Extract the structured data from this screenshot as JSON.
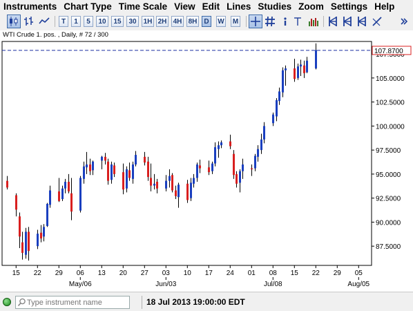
{
  "menu": [
    "Instruments",
    "Chart Type",
    "Time Scale",
    "View",
    "Edit",
    "Lines",
    "Studies",
    "Zoom",
    "Settings",
    "Help"
  ],
  "toolbar": {
    "timeframes": [
      "T",
      "1",
      "5",
      "10",
      "15",
      "30",
      "1H",
      "2H",
      "4H",
      "8H",
      "D",
      "W",
      "M"
    ],
    "active_timeframe": "D"
  },
  "chart": {
    "header": "WTI Crude 1. pos. , Daily, # 72 / 300",
    "current_price": "107.8700",
    "y_tick_labels": [
      "107.5000",
      "105.0000",
      "102.5000",
      "100.0000",
      "97.5000",
      "95.0000",
      "92.5000",
      "90.0000",
      "87.5000"
    ],
    "x_day_labels": [
      "15",
      "22",
      "29",
      "06",
      "13",
      "20",
      "27",
      "03",
      "10",
      "17",
      "24",
      "01",
      "08",
      "15",
      "22",
      "29",
      "05"
    ],
    "x_month_labels": [
      "May/06",
      "Jun/03",
      "Jul/08",
      "Aug/05"
    ]
  },
  "chart_data": {
    "type": "candlestick",
    "title": "WTI Crude 1. pos. , Daily, # 72 / 300",
    "current_price": 107.87,
    "ylim": [
      85.5,
      108.8
    ],
    "colors": {
      "up": "#1a3fbf",
      "down": "#d91f1f",
      "price_line": "#1a2fa0"
    },
    "candles": [
      {
        "d": "2013-04-12",
        "o": 94.3,
        "h": 94.8,
        "l": 93.4,
        "c": 93.6
      },
      {
        "d": "2013-04-15",
        "o": 92.8,
        "h": 93.0,
        "l": 90.6,
        "c": 91.3
      },
      {
        "d": "2013-04-16",
        "o": 90.6,
        "h": 91.0,
        "l": 87.3,
        "c": 88.5
      },
      {
        "d": "2013-04-17",
        "o": 87.9,
        "h": 89.0,
        "l": 86.1,
        "c": 86.8
      },
      {
        "d": "2013-04-18",
        "o": 86.6,
        "h": 89.4,
        "l": 86.2,
        "c": 89.0
      },
      {
        "d": "2013-04-19",
        "o": 89.0,
        "h": 89.5,
        "l": 86.0,
        "c": 87.0
      },
      {
        "d": "2013-04-22",
        "o": 87.5,
        "h": 89.2,
        "l": 87.2,
        "c": 88.8
      },
      {
        "d": "2013-04-23",
        "o": 88.9,
        "h": 89.7,
        "l": 87.9,
        "c": 88.3
      },
      {
        "d": "2013-04-24",
        "o": 88.5,
        "h": 89.8,
        "l": 88.0,
        "c": 89.5
      },
      {
        "d": "2013-04-25",
        "o": 89.6,
        "h": 92.0,
        "l": 89.5,
        "c": 91.9
      },
      {
        "d": "2013-04-26",
        "o": 91.8,
        "h": 93.8,
        "l": 91.5,
        "c": 93.3
      },
      {
        "d": "2013-04-29",
        "o": 93.2,
        "h": 94.6,
        "l": 92.1,
        "c": 92.2
      },
      {
        "d": "2013-04-30",
        "o": 92.4,
        "h": 93.8,
        "l": 92.2,
        "c": 93.5
      },
      {
        "d": "2013-05-01",
        "o": 93.5,
        "h": 94.5,
        "l": 93.0,
        "c": 94.2
      },
      {
        "d": "2013-05-02",
        "o": 94.2,
        "h": 95.0,
        "l": 93.0,
        "c": 93.2
      },
      {
        "d": "2013-05-03",
        "o": 93.0,
        "h": 94.6,
        "l": 90.2,
        "c": 91.1
      },
      {
        "d": "2013-05-06",
        "o": 91.2,
        "h": 94.8,
        "l": 91.0,
        "c": 94.6
      },
      {
        "d": "2013-05-07",
        "o": 94.5,
        "h": 96.3,
        "l": 94.0,
        "c": 95.8
      },
      {
        "d": "2013-05-08",
        "o": 95.7,
        "h": 97.3,
        "l": 95.0,
        "c": 96.0
      },
      {
        "d": "2013-05-09",
        "o": 96.0,
        "h": 96.6,
        "l": 94.9,
        "c": 95.3
      },
      {
        "d": "2013-05-10",
        "o": 95.4,
        "h": 96.4,
        "l": 94.9,
        "c": 96.3
      },
      {
        "d": "2013-05-13",
        "o": 96.4,
        "h": 96.9,
        "l": 95.5,
        "c": 96.8
      },
      {
        "d": "2013-05-14",
        "o": 96.8,
        "h": 97.2,
        "l": 96.0,
        "c": 96.4
      },
      {
        "d": "2013-05-15",
        "o": 96.3,
        "h": 96.6,
        "l": 93.9,
        "c": 94.3
      },
      {
        "d": "2013-05-16",
        "o": 94.4,
        "h": 96.3,
        "l": 94.0,
        "c": 96.0
      },
      {
        "d": "2013-05-17",
        "o": 95.9,
        "h": 96.2,
        "l": 94.7,
        "c": 95.0
      },
      {
        "d": "2013-05-20",
        "o": 95.2,
        "h": 96.1,
        "l": 92.9,
        "c": 93.4
      },
      {
        "d": "2013-05-21",
        "o": 93.5,
        "h": 95.8,
        "l": 93.1,
        "c": 95.5
      },
      {
        "d": "2013-05-22",
        "o": 95.4,
        "h": 96.2,
        "l": 94.3,
        "c": 94.6
      },
      {
        "d": "2013-05-23",
        "o": 94.5,
        "h": 96.3,
        "l": 94.0,
        "c": 96.0
      },
      {
        "d": "2013-05-24",
        "o": 96.0,
        "h": 97.4,
        "l": 95.8,
        "c": 97.0
      },
      {
        "d": "2013-05-27",
        "o": 96.8,
        "h": 97.3,
        "l": 95.9,
        "c": 96.2
      },
      {
        "d": "2013-05-28",
        "o": 96.3,
        "h": 96.8,
        "l": 94.3,
        "c": 94.7
      },
      {
        "d": "2013-05-29",
        "o": 94.6,
        "h": 96.1,
        "l": 93.2,
        "c": 93.8
      },
      {
        "d": "2013-05-30",
        "o": 93.8,
        "h": 95.0,
        "l": 93.4,
        "c": 94.0
      },
      {
        "d": "2013-05-31",
        "o": 94.2,
        "h": 94.5,
        "l": 93.0,
        "c": 93.5
      },
      {
        "d": "2013-06-03",
        "o": 93.5,
        "h": 94.9,
        "l": 93.2,
        "c": 94.3
      },
      {
        "d": "2013-06-04",
        "o": 94.3,
        "h": 95.5,
        "l": 93.6,
        "c": 94.8
      },
      {
        "d": "2013-06-05",
        "o": 94.9,
        "h": 95.1,
        "l": 93.1,
        "c": 93.3
      },
      {
        "d": "2013-06-06",
        "o": 93.3,
        "h": 93.8,
        "l": 92.4,
        "c": 92.7
      },
      {
        "d": "2013-06-07",
        "o": 92.6,
        "h": 94.1,
        "l": 91.5,
        "c": 93.9
      },
      {
        "d": "2013-06-10",
        "o": 94.0,
        "h": 94.4,
        "l": 92.0,
        "c": 92.3
      },
      {
        "d": "2013-06-11",
        "o": 92.5,
        "h": 94.6,
        "l": 92.2,
        "c": 94.1
      },
      {
        "d": "2013-06-12",
        "o": 94.0,
        "h": 95.0,
        "l": 93.6,
        "c": 94.6
      },
      {
        "d": "2013-06-13",
        "o": 94.6,
        "h": 96.2,
        "l": 94.2,
        "c": 96.0
      },
      {
        "d": "2013-06-14",
        "o": 95.9,
        "h": 96.5,
        "l": 95.1,
        "c": 95.6
      },
      {
        "d": "2013-06-17",
        "o": 95.7,
        "h": 96.4,
        "l": 94.9,
        "c": 95.2
      },
      {
        "d": "2013-06-18",
        "o": 95.3,
        "h": 96.3,
        "l": 95.0,
        "c": 96.1
      },
      {
        "d": "2013-06-19",
        "o": 96.1,
        "h": 98.3,
        "l": 95.8,
        "c": 97.8
      },
      {
        "d": "2013-06-20",
        "o": 97.6,
        "h": 98.4,
        "l": 96.7,
        "c": 98.0
      },
      {
        "d": "2013-06-21",
        "o": 98.0,
        "h": 98.5,
        "l": 97.7,
        "c": 98.3
      },
      {
        "d": "2013-06-24",
        "o": 98.4,
        "h": 99.1,
        "l": 97.6,
        "c": 97.9
      },
      {
        "d": "2013-06-25",
        "o": 97.1,
        "h": 97.5,
        "l": 94.5,
        "c": 94.9
      },
      {
        "d": "2013-06-26",
        "o": 95.0,
        "h": 95.3,
        "l": 93.6,
        "c": 94.0
      },
      {
        "d": "2013-06-27",
        "o": 94.1,
        "h": 95.5,
        "l": 93.1,
        "c": 95.3
      },
      {
        "d": "2013-06-28",
        "o": 95.3,
        "h": 96.6,
        "l": 94.5,
        "c": 96.0
      },
      {
        "d": "2013-07-01",
        "o": 95.6,
        "h": 96.0,
        "l": 94.8,
        "c": 95.5
      },
      {
        "d": "2013-07-02",
        "o": 95.6,
        "h": 97.1,
        "l": 95.3,
        "c": 96.9
      },
      {
        "d": "2013-07-03",
        "o": 96.8,
        "h": 98.0,
        "l": 96.3,
        "c": 97.6
      },
      {
        "d": "2013-07-04",
        "o": 97.5,
        "h": 99.2,
        "l": 97.1,
        "c": 98.6
      },
      {
        "d": "2013-07-05",
        "o": 98.6,
        "h": 100.4,
        "l": 98.2,
        "c": 100.0
      },
      {
        "d": "2013-07-08",
        "o": 100.3,
        "h": 101.4,
        "l": 100.0,
        "c": 101.2
      },
      {
        "d": "2013-07-09",
        "o": 101.0,
        "h": 102.9,
        "l": 100.5,
        "c": 102.7
      },
      {
        "d": "2013-07-10",
        "o": 102.6,
        "h": 104.0,
        "l": 102.2,
        "c": 103.6
      },
      {
        "d": "2013-07-11",
        "o": 103.5,
        "h": 106.1,
        "l": 103.0,
        "c": 105.8
      },
      {
        "d": "2013-07-12",
        "o": 105.8,
        "h": 106.3,
        "l": 104.2,
        "c": 106.0
      },
      {
        "d": "2013-07-15",
        "o": 106.0,
        "h": 107.0,
        "l": 104.6,
        "c": 104.9
      },
      {
        "d": "2013-07-16",
        "o": 105.0,
        "h": 106.5,
        "l": 104.8,
        "c": 106.2
      },
      {
        "d": "2013-07-17",
        "o": 106.2,
        "h": 106.9,
        "l": 105.2,
        "c": 106.4
      },
      {
        "d": "2013-07-18",
        "o": 106.3,
        "h": 106.8,
        "l": 105.0,
        "c": 105.5
      },
      {
        "d": "2013-07-19",
        "o": 105.6,
        "h": 107.2,
        "l": 105.5,
        "c": 106.8
      },
      {
        "d": "2013-07-22",
        "o": 106.0,
        "h": 108.6,
        "l": 105.9,
        "c": 107.9
      }
    ]
  },
  "statusbar": {
    "search_placeholder": "Type instrument name",
    "datetime": "18 Jul 2013 19:00:00 EDT"
  }
}
